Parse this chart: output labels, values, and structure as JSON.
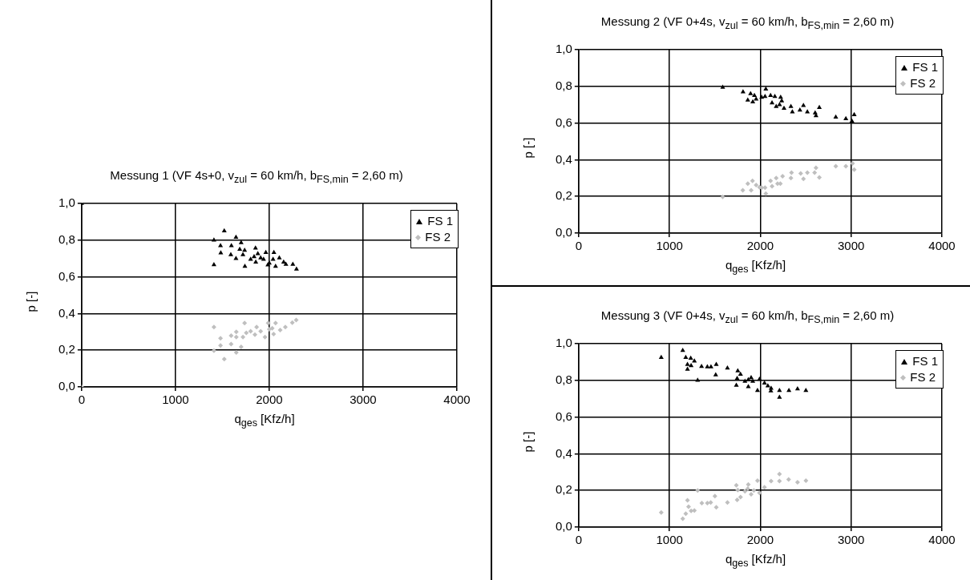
{
  "chart_data": [
    {
      "type": "scatter",
      "title": "Messung 1 (VF 4s+0, v$_{zul}$ = 60 km/h, b$_{FS,min}$ = 2,60 m)",
      "xlabel": "q$_{ges}$ [Kfz/h]",
      "ylabel": "p [-]",
      "xlim": [
        0,
        4000
      ],
      "xticks": [
        0,
        1000,
        2000,
        3000,
        4000
      ],
      "ylim": [
        0,
        1
      ],
      "yticks": [
        {
          "value": 0,
          "label": "0,0"
        },
        {
          "value": 0.2,
          "label": "0,2"
        },
        {
          "value": 0.4,
          "label": "0,4"
        },
        {
          "value": 0.6,
          "label": "0,6"
        },
        {
          "value": 0.8,
          "label": "0,8"
        },
        {
          "value": 1,
          "label": "1,0"
        }
      ],
      "grid": true,
      "legend": "top right",
      "series": [
        {
          "name": "FS 1",
          "color": "#000000",
          "marker": "triangle",
          "x": [
            0,
            1410,
            1520,
            1645,
            1700,
            1480,
            1596,
            1483,
            1590,
            1645,
            1410,
            1685,
            1737,
            1719,
            1740,
            1853,
            1838,
            1801,
            1878,
            1856,
            1963,
            1939,
            1985,
            2049,
            2040,
            2067,
            2107,
            2153,
            2177,
            2251,
            2290,
            2000,
            1908
          ],
          "values": [
            1.0,
            0.8,
            0.85,
            0.815,
            0.786,
            0.77,
            0.77,
            0.73,
            0.72,
            0.7,
            0.666,
            0.75,
            0.745,
            0.72,
            0.657,
            0.757,
            0.71,
            0.695,
            0.726,
            0.68,
            0.732,
            0.695,
            0.665,
            0.732,
            0.695,
            0.657,
            0.703,
            0.68,
            0.668,
            0.668,
            0.642,
            0.675,
            0.703
          ]
        },
        {
          "name": "FS 2",
          "color": "#bfbfbf",
          "marker": "diamond",
          "x": [
            0,
            1410,
            1737,
            1988,
            2067,
            2287,
            2245,
            2171,
            2116,
            2046,
            2000,
            1954,
            1865,
            1847,
            1801,
            1755,
            1719,
            1648,
            1648,
            1593,
            1480,
            1480,
            1593,
            1700,
            1648,
            1410,
            1520,
            1908,
            2031
          ],
          "values": [
            0,
            0.326,
            0.348,
            0.348,
            0.348,
            0.365,
            0.35,
            0.326,
            0.31,
            0.288,
            0.314,
            0.272,
            0.326,
            0.285,
            0.303,
            0.295,
            0.272,
            0.3,
            0.272,
            0.28,
            0.265,
            0.226,
            0.234,
            0.218,
            0.188,
            0.198,
            0.152,
            0.303,
            0.32
          ]
        }
      ]
    },
    {
      "type": "scatter",
      "title": "Messung 2 (VF 0+4s, v$_{zul}$ = 60 km/h, b$_{FS,min}$ = 2,60 m)",
      "xlabel": "q$_{ges}$ [Kfz/h]",
      "ylabel": "p [-]",
      "xlim": [
        0,
        4000
      ],
      "xticks": [
        0,
        1000,
        2000,
        3000,
        4000
      ],
      "ylim": [
        0,
        1
      ],
      "yticks": [
        {
          "value": 0,
          "label": "0,0"
        },
        {
          "value": 0.2,
          "label": "0,2"
        },
        {
          "value": 0.4,
          "label": "0,4"
        },
        {
          "value": 0.6,
          "label": "0,6"
        },
        {
          "value": 0.8,
          "label": "0,8"
        },
        {
          "value": 1,
          "label": "1,0"
        }
      ],
      "grid": true,
      "legend": "top right",
      "series": [
        {
          "name": "FS 1",
          "color": "#000000",
          "marker": "triangle",
          "x": [
            1586,
            1810,
            1893,
            1935,
            1862,
            1917,
            1954,
            2015,
            2061,
            2052,
            2113,
            2160,
            2129,
            2175,
            2224,
            2236,
            2261,
            2337,
            2353,
            2436,
            2475,
            2518,
            2604,
            2613,
            2650,
            2831,
            2942,
            3009,
            3034,
            2212
          ],
          "values": [
            0.795,
            0.77,
            0.76,
            0.75,
            0.725,
            0.715,
            0.73,
            0.74,
            0.785,
            0.745,
            0.75,
            0.745,
            0.71,
            0.69,
            0.74,
            0.72,
            0.68,
            0.69,
            0.66,
            0.67,
            0.695,
            0.66,
            0.655,
            0.64,
            0.685,
            0.632,
            0.623,
            0.61,
            0.645,
            0.7
          ]
        },
        {
          "name": "FS 2",
          "color": "#bfbfbf",
          "marker": "diamond",
          "x": [
            1586,
            1807,
            1862,
            1914,
            1899,
            1954,
            2015,
            2061,
            2052,
            2113,
            2129,
            2175,
            2221,
            2245,
            2344,
            2337,
            2445,
            2475,
            2518,
            2598,
            2613,
            2650,
            2831,
            2942,
            3015,
            3034,
            2190,
            1991
          ],
          "values": [
            0.198,
            0.234,
            0.27,
            0.285,
            0.234,
            0.262,
            0.248,
            0.215,
            0.248,
            0.285,
            0.256,
            0.3,
            0.27,
            0.31,
            0.33,
            0.3,
            0.325,
            0.296,
            0.33,
            0.33,
            0.356,
            0.303,
            0.365,
            0.365,
            0.38,
            0.346,
            0.27,
            0.25
          ]
        }
      ]
    },
    {
      "type": "scatter",
      "title": "Messung 3 (VF 0+4s, v$_{zul}$ = 60 km/h, b$_{FS,min}$ = 2,60 m)",
      "xlabel": "q$_{ges}$ [Kfz/h]",
      "ylabel": "p [-]",
      "xlim": [
        0,
        4000
      ],
      "xticks": [
        0,
        1000,
        2000,
        3000,
        4000
      ],
      "ylim": [
        0,
        1
      ],
      "yticks": [
        {
          "value": 0,
          "label": "0,0"
        },
        {
          "value": 0.2,
          "label": "0,2"
        },
        {
          "value": 0.4,
          "label": "0,4"
        },
        {
          "value": 0.6,
          "label": "0,6"
        },
        {
          "value": 0.8,
          "label": "0,8"
        },
        {
          "value": 1,
          "label": "1,0"
        }
      ],
      "grid": true,
      "legend": "top right",
      "series": [
        {
          "name": "FS 1",
          "color": "#000000",
          "marker": "triangle",
          "x": [
            909,
            1146,
            1179,
            1234,
            1274,
            1198,
            1198,
            1238,
            1310,
            1353,
            1417,
            1457,
            1515,
            1509,
            1638,
            1752,
            1782,
            1745,
            1736,
            1831,
            1868,
            1899,
            1868,
            1917,
            1969,
            1991,
            2046,
            2083,
            2119,
            2116,
            2211,
            2211,
            2305,
            2315,
            2410,
            2502
          ],
          "values": [
            0.925,
            0.963,
            0.925,
            0.92,
            0.905,
            0.887,
            0.86,
            0.88,
            0.8,
            0.876,
            0.873,
            0.873,
            0.887,
            0.83,
            0.867,
            0.852,
            0.833,
            0.81,
            0.773,
            0.795,
            0.803,
            0.814,
            0.765,
            0.795,
            0.745,
            0.806,
            0.785,
            0.77,
            0.757,
            0.742,
            0.745,
            0.707,
            null,
            0.745,
            0.753,
            0.745
          ]
        },
        {
          "name": "FS 2",
          "color": "#bfbfbf",
          "marker": "diamond",
          "x": [
            909,
            1146,
            1179,
            1198,
            1210,
            1238,
            1274,
            1310,
            1356,
            1417,
            1454,
            1500,
            1515,
            1638,
            1736,
            1745,
            1782,
            1752,
            1831,
            1868,
            1899,
            1862,
            1969,
            1991,
            2046,
            2119,
            2211,
            2211,
            2312,
            2410,
            2502,
            1929
          ],
          "values": [
            0.08,
            0.046,
            0.073,
            0.146,
            0.111,
            0.088,
            0.091,
            0.2,
            0.131,
            0.131,
            0.134,
            0.169,
            0.108,
            0.134,
            0.228,
            0.149,
            0.164,
            0.202,
            0.195,
            0.233,
            0.179,
            0.21,
            0.253,
            0.187,
            0.217,
            0.251,
            0.289,
            0.251,
            0.26,
            0.245,
            0.253,
            0.2
          ]
        }
      ]
    }
  ]
}
